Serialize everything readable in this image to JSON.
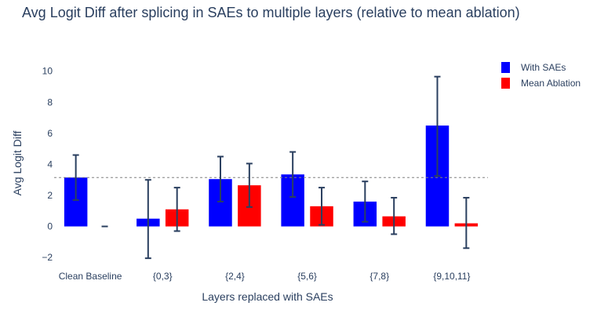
{
  "chart_data": {
    "type": "bar",
    "title": "Avg Logit Diff after splicing in SAEs to multiple layers (relative to mean ablation)",
    "xlabel": "Layers replaced with SAEs",
    "ylabel": "Avg Logit Diff",
    "categories": [
      "Clean Baseline",
      "{0,3}",
      "{2,4}",
      "{5,6}",
      "{7,8}",
      "{9,10,11}"
    ],
    "ylim": [
      -2.6,
      11.2
    ],
    "yticks": [
      -2,
      0,
      2,
      4,
      6,
      8,
      10
    ],
    "ytick_labels": [
      "−2",
      "0",
      "2",
      "4",
      "6",
      "8",
      "10"
    ],
    "reference_line": 3.15,
    "legend_position": "top-right",
    "series": [
      {
        "name": "With SAEs",
        "color": "#0000ff",
        "values": [
          3.15,
          0.5,
          3.05,
          3.35,
          1.6,
          6.5
        ],
        "err_low": [
          1.7,
          -2.05,
          1.6,
          1.9,
          0.3,
          3.25
        ],
        "err_high": [
          4.6,
          3.0,
          4.5,
          4.8,
          2.9,
          9.65
        ]
      },
      {
        "name": "Mean Ablation",
        "color": "#ff0000",
        "values": [
          0.0,
          1.1,
          2.65,
          1.3,
          0.65,
          0.2
        ],
        "err_low": [
          0.0,
          -0.3,
          1.25,
          0.1,
          -0.5,
          -1.4
        ],
        "err_high": [
          0.0,
          2.5,
          4.05,
          2.5,
          1.85,
          1.85
        ]
      }
    ],
    "error_bar_color": "#2a3f5f"
  }
}
